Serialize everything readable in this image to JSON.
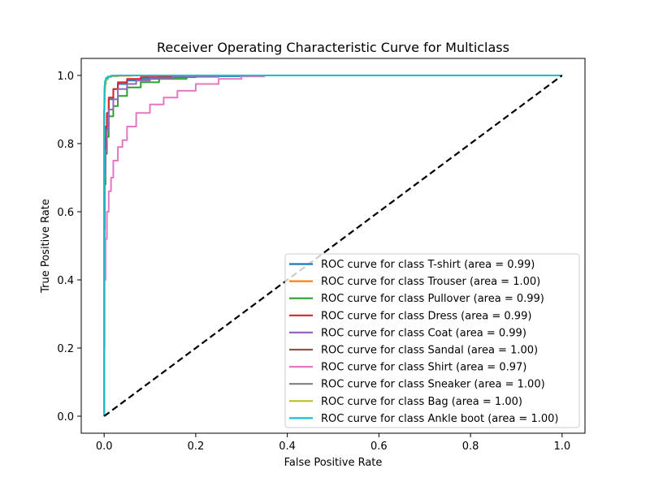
{
  "chart_data": {
    "type": "line",
    "title": "Receiver Operating Characteristic Curve for Multiclass",
    "xlabel": "False Positive Rate",
    "ylabel": "True Positive Rate",
    "xlim": [
      -0.05,
      1.05
    ],
    "ylim": [
      -0.05,
      1.05
    ],
    "xticks": [
      "0.0",
      "0.2",
      "0.4",
      "0.6",
      "0.8",
      "1.0"
    ],
    "yticks": [
      "0.0",
      "0.2",
      "0.4",
      "0.6",
      "0.8",
      "1.0"
    ],
    "xtick_values": [
      0,
      0.2,
      0.4,
      0.6,
      0.8,
      1.0
    ],
    "ytick_values": [
      0,
      0.2,
      0.4,
      0.6,
      0.8,
      1.0
    ],
    "grid": false,
    "legend_position": "lower-right",
    "diagonal": {
      "x": [
        0,
        1
      ],
      "y": [
        0,
        1
      ],
      "color": "#000000",
      "style": "dashed"
    },
    "series": [
      {
        "name": "ROC curve for class T-shirt (area = 0.99)",
        "color": "#1f77b4",
        "x": [
          0,
          0.001,
          0.003,
          0.006,
          0.01,
          0.02,
          0.03,
          0.05,
          0.08,
          0.12,
          0.2,
          0.3,
          0.5,
          1.0
        ],
        "y": [
          0,
          0.55,
          0.74,
          0.83,
          0.88,
          0.93,
          0.96,
          0.975,
          0.985,
          0.99,
          0.995,
          0.998,
          1.0,
          1.0
        ]
      },
      {
        "name": "ROC curve for class Trouser (area = 1.00)",
        "color": "#ff7f0e",
        "x": [
          0,
          0.0005,
          0.001,
          0.002,
          0.004,
          0.008,
          0.015,
          0.03,
          0.06,
          0.2,
          1.0
        ],
        "y": [
          0,
          0.9,
          0.95,
          0.97,
          0.98,
          0.99,
          0.995,
          0.998,
          0.999,
          1.0,
          1.0
        ]
      },
      {
        "name": "ROC curve for class Pullover (area = 0.99)",
        "color": "#2ca02c",
        "x": [
          0,
          0.001,
          0.003,
          0.006,
          0.01,
          0.02,
          0.03,
          0.05,
          0.08,
          0.12,
          0.18,
          0.25,
          0.4,
          1.0
        ],
        "y": [
          0,
          0.5,
          0.68,
          0.77,
          0.82,
          0.88,
          0.91,
          0.94,
          0.965,
          0.98,
          0.99,
          0.996,
          1.0,
          1.0
        ]
      },
      {
        "name": "ROC curve for class Dress (area = 0.99)",
        "color": "#d62728",
        "x": [
          0,
          0.001,
          0.003,
          0.006,
          0.01,
          0.02,
          0.03,
          0.05,
          0.08,
          0.12,
          0.2,
          0.3,
          1.0
        ],
        "y": [
          0,
          0.6,
          0.77,
          0.85,
          0.89,
          0.935,
          0.96,
          0.98,
          0.99,
          0.995,
          0.998,
          1.0,
          1.0
        ]
      },
      {
        "name": "ROC curve for class Coat (area = 0.99)",
        "color": "#9467bd",
        "x": [
          0,
          0.001,
          0.003,
          0.006,
          0.01,
          0.02,
          0.03,
          0.05,
          0.07,
          0.1,
          0.15,
          0.25,
          0.4,
          1.0
        ],
        "y": [
          0,
          0.55,
          0.7,
          0.78,
          0.84,
          0.9,
          0.93,
          0.96,
          0.975,
          0.985,
          0.992,
          0.997,
          1.0,
          1.0
        ]
      },
      {
        "name": "ROC curve for class Sandal (area = 1.00)",
        "color": "#8c564b",
        "x": [
          0,
          0.0005,
          0.001,
          0.002,
          0.004,
          0.008,
          0.015,
          0.03,
          0.08,
          1.0
        ],
        "y": [
          0,
          0.85,
          0.92,
          0.96,
          0.98,
          0.99,
          0.996,
          0.999,
          1.0,
          1.0
        ]
      },
      {
        "name": "ROC curve for class Shirt (area = 0.97)",
        "color": "#e377c2",
        "x": [
          0,
          0.001,
          0.003,
          0.006,
          0.01,
          0.015,
          0.02,
          0.03,
          0.04,
          0.05,
          0.07,
          0.1,
          0.13,
          0.16,
          0.2,
          0.25,
          0.3,
          0.35,
          0.38,
          1.0
        ],
        "y": [
          0,
          0.2,
          0.4,
          0.52,
          0.6,
          0.66,
          0.7,
          0.75,
          0.79,
          0.81,
          0.85,
          0.89,
          0.915,
          0.935,
          0.955,
          0.975,
          0.99,
          0.997,
          1.0,
          1.0
        ]
      },
      {
        "name": "ROC curve for class Sneaker (area = 1.00)",
        "color": "#7f7f7f",
        "x": [
          0,
          0.0005,
          0.001,
          0.002,
          0.004,
          0.008,
          0.015,
          0.03,
          0.08,
          1.0
        ],
        "y": [
          0,
          0.88,
          0.93,
          0.96,
          0.98,
          0.99,
          0.996,
          0.999,
          1.0,
          1.0
        ]
      },
      {
        "name": "ROC curve for class Bag (area = 1.00)",
        "color": "#bcbd22",
        "x": [
          0,
          0.0005,
          0.001,
          0.002,
          0.004,
          0.008,
          0.015,
          0.03,
          0.08,
          1.0
        ],
        "y": [
          0,
          0.82,
          0.9,
          0.95,
          0.975,
          0.988,
          0.995,
          0.999,
          1.0,
          1.0
        ]
      },
      {
        "name": "ROC curve for class Ankle boot (area = 1.00)",
        "color": "#17becf",
        "x": [
          0,
          0.0005,
          0.001,
          0.002,
          0.004,
          0.008,
          0.015,
          0.03,
          0.08,
          1.0
        ],
        "y": [
          0,
          0.9,
          0.95,
          0.97,
          0.985,
          0.993,
          0.997,
          0.999,
          1.0,
          1.0
        ]
      }
    ]
  }
}
